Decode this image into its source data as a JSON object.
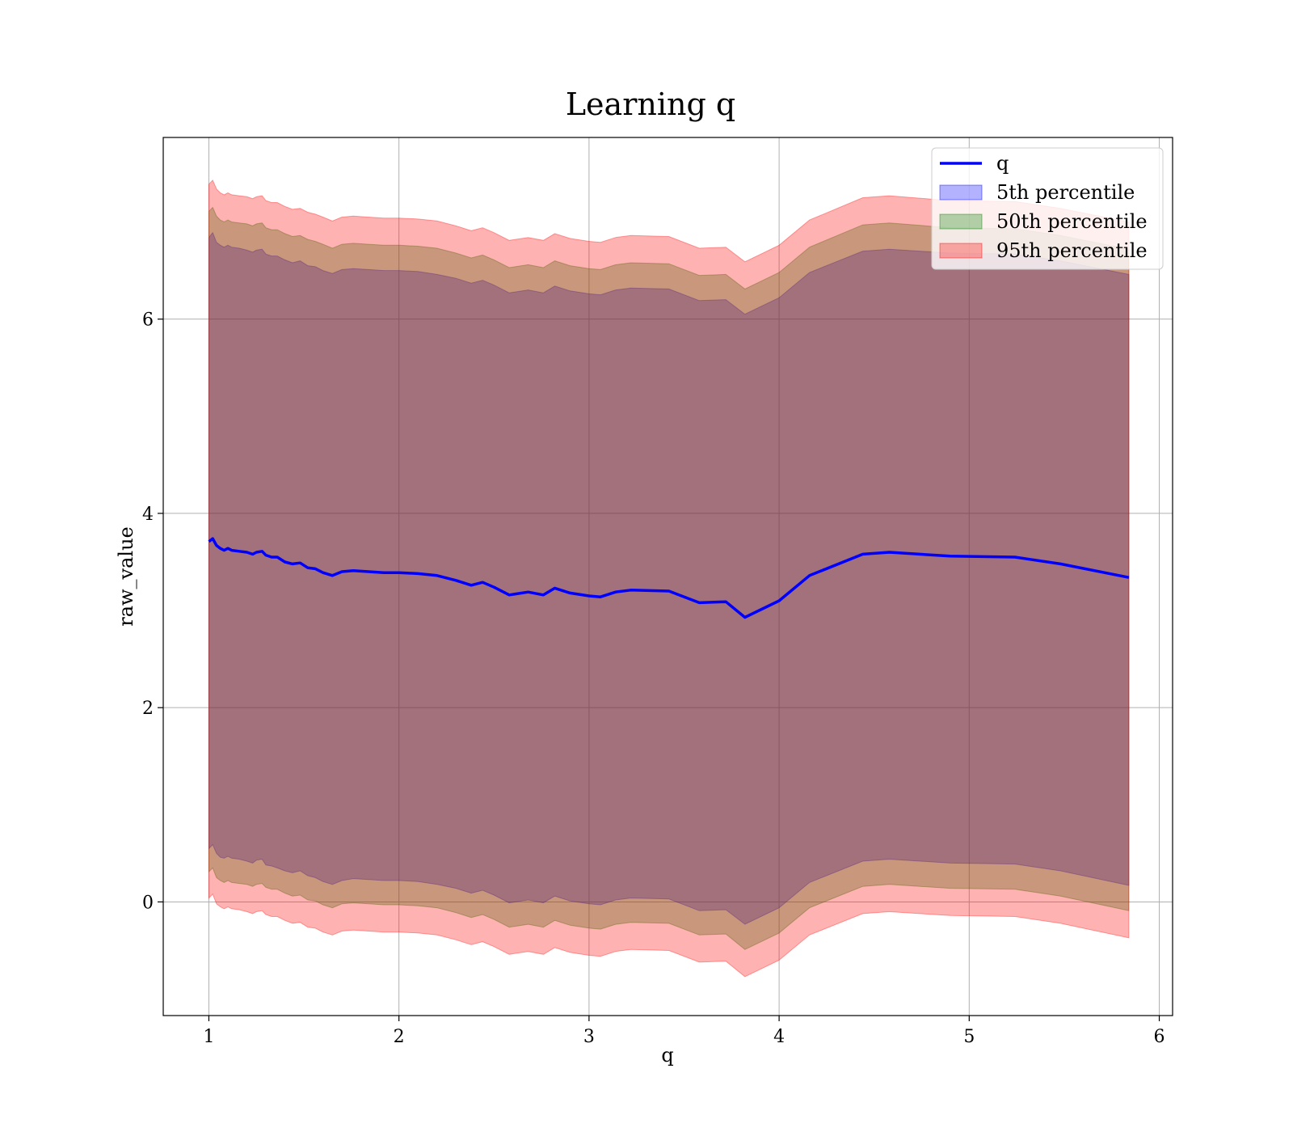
{
  "chart_data": {
    "type": "area",
    "title": "Learning q",
    "xlabel": "q",
    "ylabel": "raw_value",
    "xlim": [
      0.76,
      6.07
    ],
    "ylim": [
      -1.17,
      7.87
    ],
    "xticks": [
      1,
      2,
      3,
      4,
      5,
      6
    ],
    "yticks": [
      0,
      2,
      4,
      6
    ],
    "grid": true,
    "legend_position": "top-right",
    "colors": {
      "line": "#0000ff",
      "band_5th": "#0000ff",
      "band_50th": "#008000",
      "band_95th": "#ff0000",
      "grid": "#b0b0b0"
    },
    "x": [
      1.0,
      1.02,
      1.04,
      1.06,
      1.08,
      1.1,
      1.12,
      1.16,
      1.2,
      1.23,
      1.25,
      1.28,
      1.3,
      1.33,
      1.36,
      1.4,
      1.44,
      1.48,
      1.52,
      1.56,
      1.6,
      1.65,
      1.7,
      1.76,
      1.84,
      1.92,
      2.0,
      2.1,
      2.2,
      2.3,
      2.38,
      2.44,
      2.5,
      2.58,
      2.68,
      2.76,
      2.82,
      2.9,
      3.0,
      3.06,
      3.14,
      3.22,
      3.42,
      3.58,
      3.72,
      3.82,
      4.0,
      4.16,
      4.44,
      4.58,
      4.9,
      5.24,
      5.48,
      5.84
    ],
    "series": [
      {
        "name": "q",
        "kind": "line",
        "values": [
          3.71,
          3.74,
          3.67,
          3.64,
          3.62,
          3.64,
          3.62,
          3.61,
          3.6,
          3.58,
          3.6,
          3.61,
          3.57,
          3.55,
          3.55,
          3.5,
          3.48,
          3.49,
          3.44,
          3.43,
          3.39,
          3.36,
          3.4,
          3.41,
          3.4,
          3.39,
          3.39,
          3.38,
          3.36,
          3.31,
          3.26,
          3.29,
          3.24,
          3.16,
          3.19,
          3.16,
          3.23,
          3.18,
          3.15,
          3.14,
          3.19,
          3.21,
          3.2,
          3.08,
          3.09,
          2.93,
          3.1,
          3.36,
          3.58,
          3.6,
          3.56,
          3.55,
          3.48,
          3.34
        ]
      },
      {
        "name": "5th percentile",
        "kind": "band",
        "lower": [
          0.55,
          0.59,
          0.5,
          0.46,
          0.45,
          0.47,
          0.45,
          0.44,
          0.42,
          0.4,
          0.43,
          0.44,
          0.38,
          0.37,
          0.35,
          0.32,
          0.3,
          0.32,
          0.27,
          0.25,
          0.21,
          0.18,
          0.22,
          0.24,
          0.23,
          0.22,
          0.22,
          0.21,
          0.18,
          0.14,
          0.09,
          0.12,
          0.07,
          -0.01,
          0.02,
          -0.01,
          0.06,
          0.01,
          -0.02,
          -0.03,
          0.02,
          0.04,
          0.03,
          -0.09,
          -0.08,
          -0.23,
          -0.06,
          0.2,
          0.42,
          0.44,
          0.4,
          0.39,
          0.32,
          0.17
        ],
        "upper": [
          6.84,
          6.89,
          6.79,
          6.76,
          6.74,
          6.76,
          6.74,
          6.73,
          6.71,
          6.69,
          6.71,
          6.72,
          6.67,
          6.65,
          6.65,
          6.61,
          6.58,
          6.6,
          6.55,
          6.54,
          6.5,
          6.47,
          6.51,
          6.52,
          6.51,
          6.5,
          6.5,
          6.49,
          6.46,
          6.42,
          6.37,
          6.4,
          6.35,
          6.27,
          6.3,
          6.27,
          6.34,
          6.29,
          6.26,
          6.25,
          6.3,
          6.32,
          6.31,
          6.19,
          6.2,
          6.05,
          6.22,
          6.48,
          6.7,
          6.72,
          6.68,
          6.67,
          6.6,
          6.46
        ]
      },
      {
        "name": "50th percentile",
        "kind": "band",
        "lower": [
          0.31,
          0.35,
          0.25,
          0.22,
          0.2,
          0.22,
          0.2,
          0.19,
          0.18,
          0.16,
          0.18,
          0.19,
          0.15,
          0.13,
          0.13,
          0.09,
          0.06,
          0.07,
          0.02,
          0.01,
          -0.03,
          -0.06,
          -0.02,
          -0.01,
          -0.02,
          -0.03,
          -0.03,
          -0.04,
          -0.06,
          -0.11,
          -0.16,
          -0.13,
          -0.18,
          -0.26,
          -0.23,
          -0.26,
          -0.19,
          -0.24,
          -0.27,
          -0.28,
          -0.23,
          -0.21,
          -0.22,
          -0.34,
          -0.33,
          -0.49,
          -0.32,
          -0.06,
          0.16,
          0.18,
          0.14,
          0.13,
          0.06,
          -0.09
        ],
        "upper": [
          7.11,
          7.15,
          7.06,
          7.02,
          7.0,
          7.02,
          7.0,
          6.99,
          6.98,
          6.96,
          6.98,
          6.99,
          6.94,
          6.92,
          6.92,
          6.88,
          6.85,
          6.86,
          6.82,
          6.8,
          6.77,
          6.73,
          6.77,
          6.78,
          6.77,
          6.76,
          6.76,
          6.75,
          6.73,
          6.68,
          6.63,
          6.66,
          6.61,
          6.53,
          6.56,
          6.53,
          6.6,
          6.55,
          6.52,
          6.51,
          6.56,
          6.58,
          6.57,
          6.45,
          6.46,
          6.31,
          6.48,
          6.74,
          6.97,
          6.99,
          6.94,
          6.93,
          6.86,
          6.72
        ]
      },
      {
        "name": "95th percentile",
        "kind": "band",
        "lower": [
          0.04,
          0.08,
          -0.02,
          -0.05,
          -0.07,
          -0.05,
          -0.07,
          -0.08,
          -0.1,
          -0.12,
          -0.1,
          -0.09,
          -0.13,
          -0.15,
          -0.15,
          -0.19,
          -0.22,
          -0.21,
          -0.26,
          -0.27,
          -0.31,
          -0.34,
          -0.3,
          -0.29,
          -0.3,
          -0.31,
          -0.31,
          -0.32,
          -0.34,
          -0.39,
          -0.44,
          -0.41,
          -0.46,
          -0.54,
          -0.51,
          -0.54,
          -0.47,
          -0.52,
          -0.55,
          -0.56,
          -0.51,
          -0.49,
          -0.5,
          -0.62,
          -0.61,
          -0.77,
          -0.6,
          -0.34,
          -0.12,
          -0.1,
          -0.14,
          -0.15,
          -0.22,
          -0.37
        ],
        "upper": [
          7.39,
          7.43,
          7.34,
          7.3,
          7.28,
          7.3,
          7.28,
          7.27,
          7.26,
          7.24,
          7.26,
          7.27,
          7.22,
          7.2,
          7.2,
          7.16,
          7.13,
          7.14,
          7.1,
          7.08,
          7.05,
          7.01,
          7.05,
          7.06,
          7.05,
          7.04,
          7.04,
          7.03,
          7.01,
          6.96,
          6.91,
          6.94,
          6.89,
          6.81,
          6.84,
          6.81,
          6.88,
          6.83,
          6.8,
          6.79,
          6.84,
          6.86,
          6.85,
          6.73,
          6.74,
          6.59,
          6.76,
          7.02,
          7.25,
          7.27,
          7.22,
          7.21,
          7.14,
          7.0
        ]
      }
    ],
    "legend": [
      {
        "label": "q",
        "kind": "line",
        "color": "#0000ff"
      },
      {
        "label": "5th percentile",
        "kind": "patch",
        "color": "#0000ff"
      },
      {
        "label": "50th percentile",
        "kind": "patch",
        "color": "#008000"
      },
      {
        "label": "95th percentile",
        "kind": "patch",
        "color": "#ff0000"
      }
    ]
  }
}
